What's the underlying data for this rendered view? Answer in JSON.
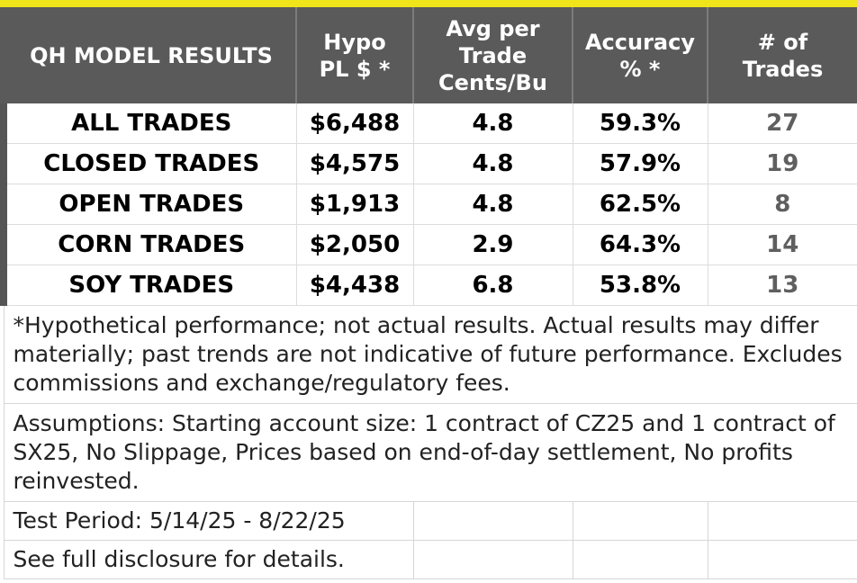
{
  "header": {
    "col1": "QH MODEL RESULTS",
    "col2": "Hypo\nPL $ *",
    "col3": "Avg per\nTrade\nCents/Bu",
    "col4": "Accuracy\n% *",
    "col5": "# of\nTrades"
  },
  "rows": [
    {
      "label": "ALL TRADES",
      "pl": "$6,488",
      "avg": "4.8",
      "accuracy": "59.3%",
      "trades": "27"
    },
    {
      "label": "CLOSED TRADES",
      "pl": "$4,575",
      "avg": "4.8",
      "accuracy": "57.9%",
      "trades": "19"
    },
    {
      "label": "OPEN TRADES",
      "pl": "$1,913",
      "avg": "4.8",
      "accuracy": "62.5%",
      "trades": "8"
    },
    {
      "label": "CORN TRADES",
      "pl": "$2,050",
      "avg": "2.9",
      "accuracy": "64.3%",
      "trades": "14"
    },
    {
      "label": "SOY TRADES",
      "pl": "$4,438",
      "avg": "6.8",
      "accuracy": "53.8%",
      "trades": "13"
    }
  ],
  "notes": {
    "disclaimer": "*Hypothetical performance; not actual results. Actual results may differ materially; past trends are not indicative of future performance. Excludes commissions and exchange/regulatory fees.",
    "assumptions": "Assumptions: Starting account size: 1 contract of CZ25 and 1 contract of SX25, No Slippage, Prices based on end-of-day settlement, No profits reinvested.",
    "test_period": "Test Period: 5/14/25 - 8/22/25",
    "disclosure": "See full disclosure for details."
  },
  "colors": {
    "header_bg": "#5a5a5a",
    "accent_yellow": "#f0e41a",
    "frame": "#555555"
  }
}
